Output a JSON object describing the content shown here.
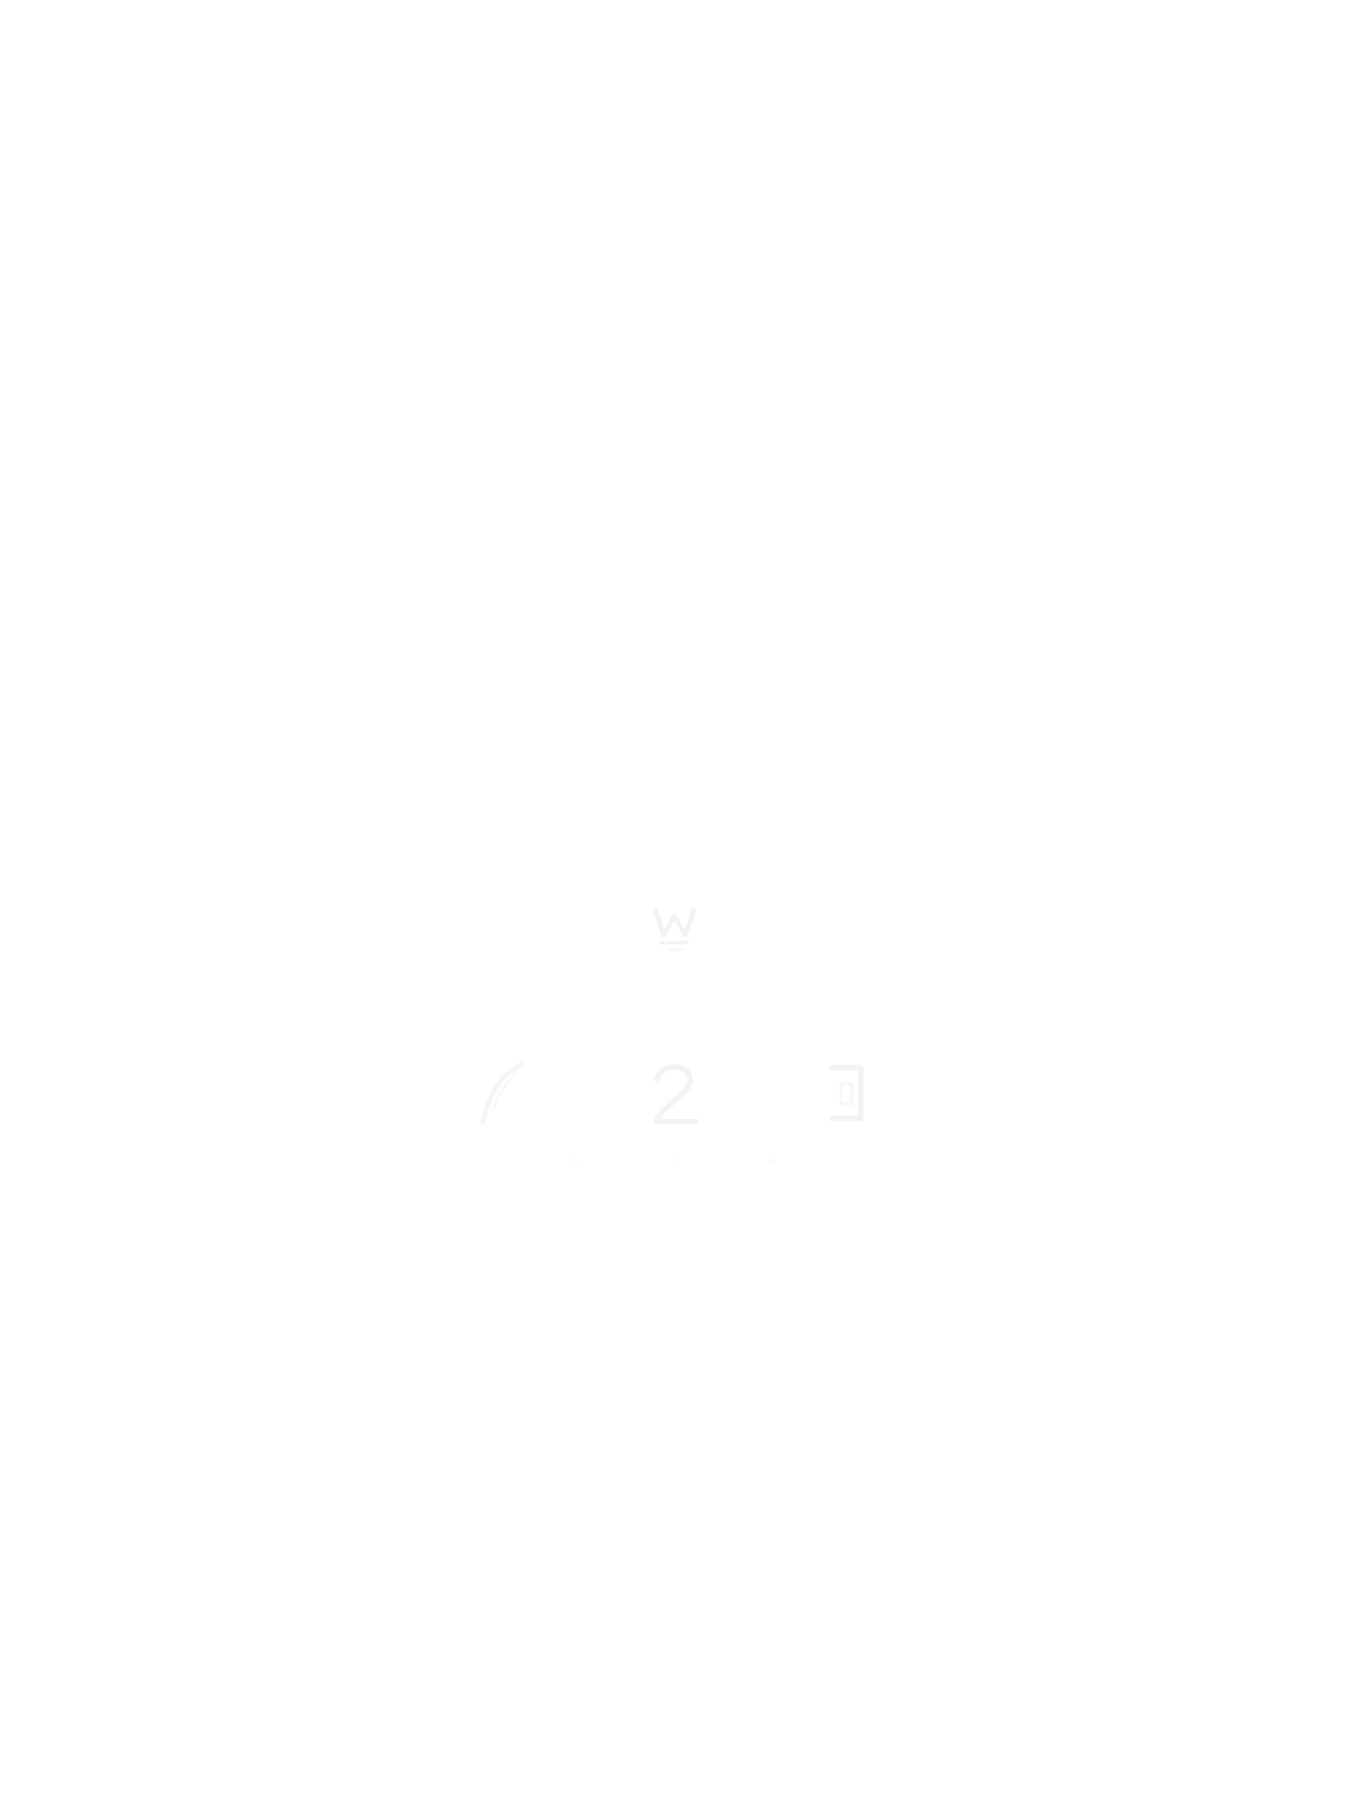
{
  "page": {
    "background_color": "#ffffff",
    "mark_color": "#f4f4f4"
  },
  "icons": {
    "center_mark": "seal-mark",
    "row_glyphs": [
      "feather-glyph",
      "numeral-glyph",
      "bracket-glyph"
    ]
  }
}
